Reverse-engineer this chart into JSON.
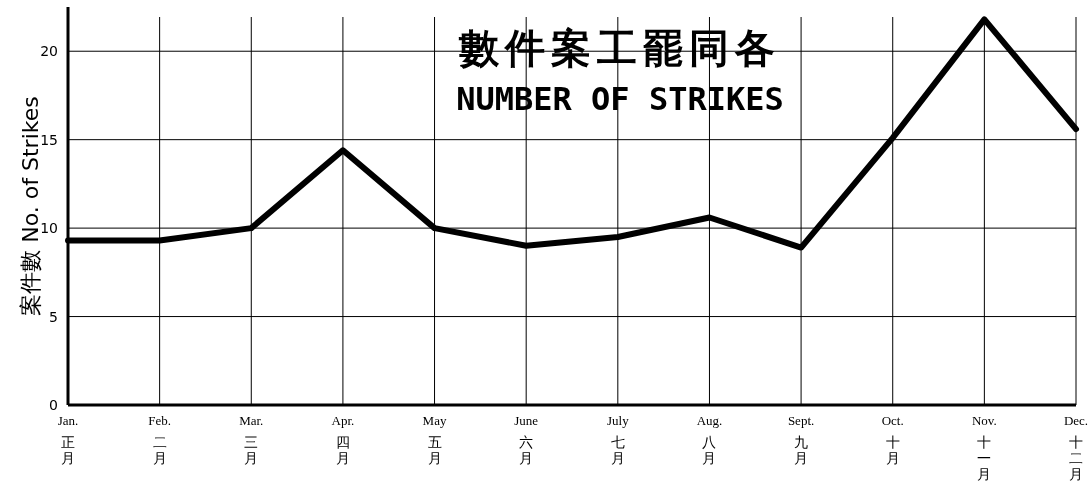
{
  "chart_data": {
    "type": "line",
    "title": "數件案工罷同各",
    "subtitle": "NUMBER OF STRIKES",
    "ylabel": "案件數 No. of Strikes",
    "categories": [
      "Jan.\n正月",
      "Feb.\n二月",
      "Mar.\n三月",
      "Apr.\n四月",
      "May\n五月",
      "June\n六月",
      "July\n七月",
      "Aug.\n八月",
      "Sept.\n九月",
      "Oct.\n十月",
      "Nov.\n十一月",
      "Dec.\n十二月"
    ],
    "series": [
      {
        "color": "#000000",
        "values": [
          9.3,
          9.3,
          10,
          14.4,
          10,
          9.0,
          9.5,
          10.6,
          8.9,
          15.1,
          21.8,
          15.6
        ]
      }
    ],
    "ylim": [
      0,
      22.5
    ],
    "yticks": [
      0,
      5,
      10,
      15,
      20
    ],
    "grid": true
  }
}
